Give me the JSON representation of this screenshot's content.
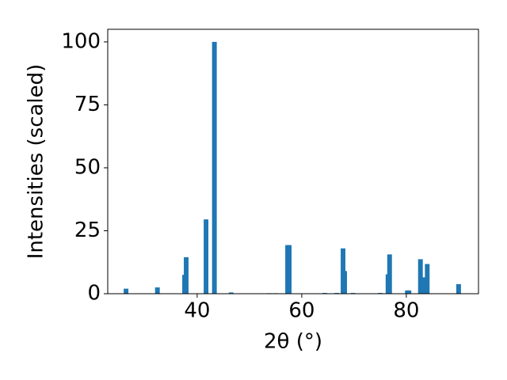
{
  "chart_data": {
    "type": "bar",
    "xlabel": "2θ (°)",
    "ylabel": "Intensities (scaled)",
    "color": "#1f77b4",
    "bar_width": 0.9,
    "x": [
      26.4,
      32.4,
      37.6,
      37.9,
      41.7,
      43.3,
      46.5,
      53.8,
      55.0,
      57.3,
      57.6,
      64.4,
      66.7,
      67.9,
      68.2,
      69.8,
      75.0,
      76.5,
      76.8,
      80.2,
      80.5,
      82.7,
      83.2,
      84.0,
      90.0
    ],
    "values": [
      2,
      2.5,
      7.5,
      14.5,
      29.5,
      100,
      0.5,
      0.2,
      0.2,
      19.3,
      19.3,
      0.3,
      0.3,
      18,
      9,
      0.3,
      0.3,
      7.7,
      15.6,
      1.3,
      1.3,
      13.7,
      6.5,
      11.8,
      3.8
    ],
    "xlim": [
      22.9,
      93.8
    ],
    "ylim": [
      0,
      105
    ],
    "xticks": [
      40,
      60,
      80
    ],
    "yticks": [
      0,
      25,
      50,
      75,
      100
    ]
  }
}
